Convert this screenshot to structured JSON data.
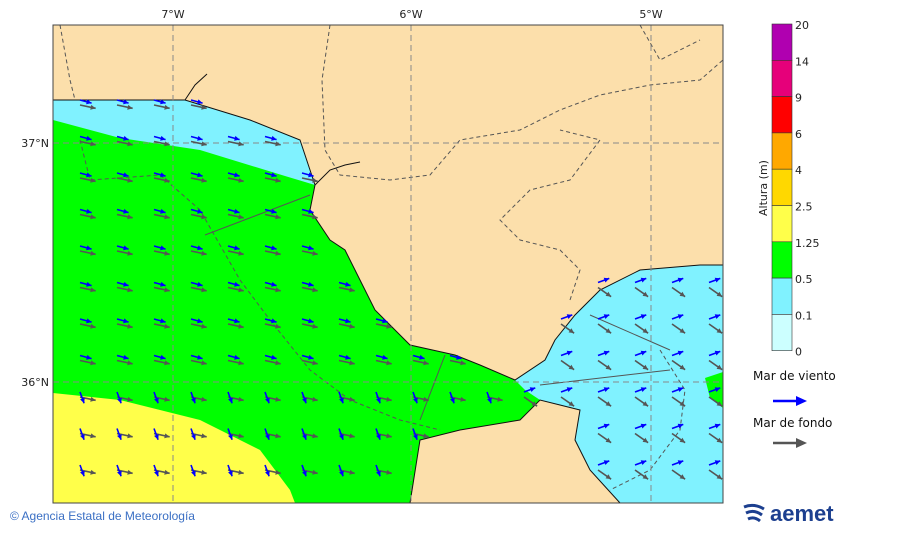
{
  "map": {
    "lon_labels": [
      "7°W",
      "6°W",
      "5°W"
    ],
    "lat_labels": [
      "37°N",
      "36°N"
    ],
    "colors": {
      "land": "#fcdfab",
      "border": "#555555"
    }
  },
  "legend": {
    "title": "Altura (m)",
    "ticks": [
      "20",
      "14",
      "9",
      "6",
      "4",
      "2.5",
      "1.25",
      "0.5",
      "0.1",
      "0"
    ],
    "bins": [
      {
        "from": "14",
        "to": "20",
        "color": "#b000b0"
      },
      {
        "from": "9",
        "to": "14",
        "color": "#e6007a"
      },
      {
        "from": "6",
        "to": "9",
        "color": "#ff0000"
      },
      {
        "from": "4",
        "to": "6",
        "color": "#ffa800"
      },
      {
        "from": "2.5",
        "to": "4",
        "color": "#ffd800"
      },
      {
        "from": "1.25",
        "to": "2.5",
        "color": "#ffff4a"
      },
      {
        "from": "0.5",
        "to": "1.25",
        "color": "#00ff00"
      },
      {
        "from": "0.1",
        "to": "0.5",
        "color": "#80f2ff"
      },
      {
        "from": "0",
        "to": "0.1",
        "color": "#ccffff"
      }
    ],
    "wind_sea_label": "Mar de viento",
    "wind_sea_color": "#0000ff",
    "swell_label": "Mar de fondo",
    "swell_color": "#555555"
  },
  "footer": {
    "copyright_symbol": "©",
    "agency": "Agencia Estatal de Meteorología",
    "logo_text": "aemet"
  }
}
